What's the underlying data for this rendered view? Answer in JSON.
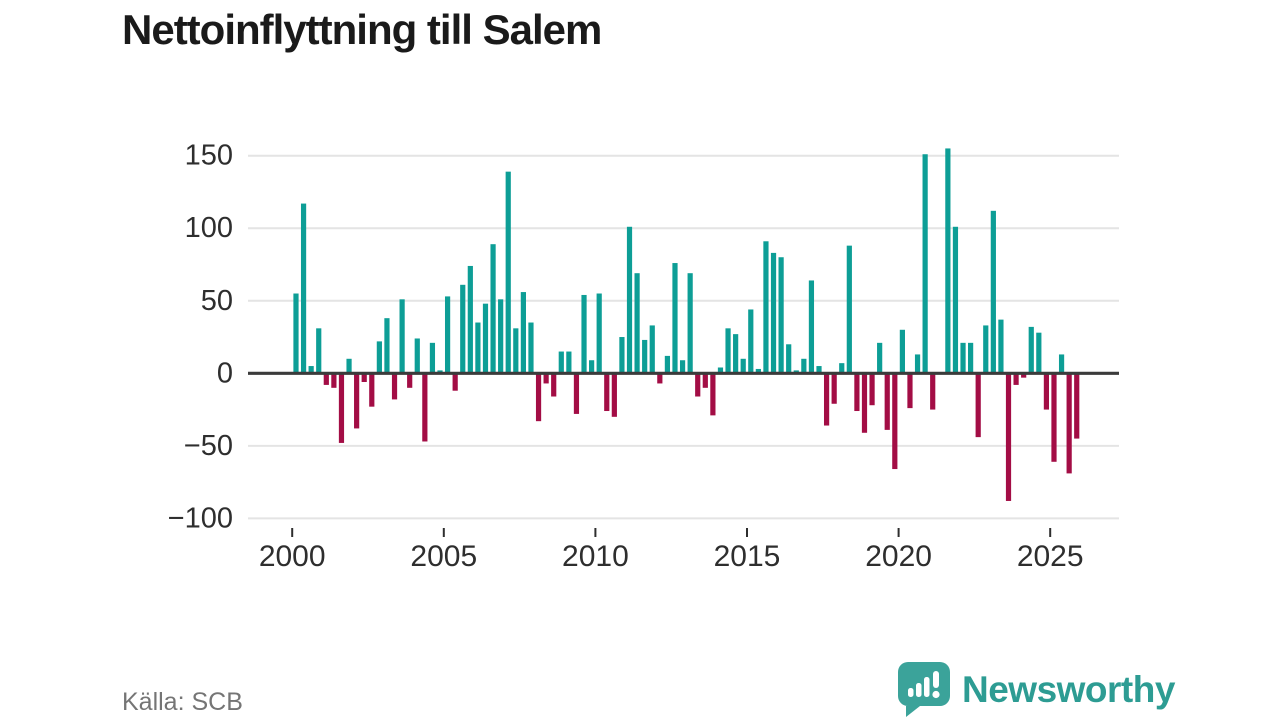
{
  "title": "Nettoinflyttning till Salem",
  "footer": {
    "source": "Källa: SCB"
  },
  "brand": {
    "name": "Newsworthy",
    "icon": "bar-chart-speech-bubble-icon"
  },
  "colors": {
    "positive_bar": "#0d9e96",
    "negative_bar": "#a30d45",
    "gridline": "#e4e4e4",
    "zero_axis": "#3b3b3b",
    "tick_label": "#2e2e2e",
    "source_text": "#757575",
    "brand_teal": "#2d9c93",
    "brand_icon_teal": "#3ba39a",
    "background": "#ffffff"
  },
  "chart_data": {
    "type": "bar",
    "title": "Nettoinflyttning till Salem",
    "xlabel": "",
    "ylabel": "",
    "frequency": "quarterly",
    "grid": "horizontal",
    "ylim": [
      -108,
      161
    ],
    "y_ticks": [
      150,
      100,
      50,
      0,
      -50,
      -100
    ],
    "y_tick_labels": [
      "150",
      "100",
      "50",
      "0",
      "−50",
      "−100"
    ],
    "x_ticks": [
      2000,
      2005,
      2010,
      2015,
      2020,
      2025
    ],
    "x_tick_labels": [
      "2000",
      "2005",
      "2010",
      "2015",
      "2020",
      "2025"
    ],
    "x": [
      "2000 Q1",
      "2000 Q2",
      "2000 Q3",
      "2000 Q4",
      "2001 Q1",
      "2001 Q2",
      "2001 Q3",
      "2001 Q4",
      "2002 Q1",
      "2002 Q2",
      "2002 Q3",
      "2002 Q4",
      "2003 Q1",
      "2003 Q2",
      "2003 Q3",
      "2003 Q4",
      "2004 Q1",
      "2004 Q2",
      "2004 Q3",
      "2004 Q4",
      "2005 Q1",
      "2005 Q2",
      "2005 Q3",
      "2005 Q4",
      "2006 Q1",
      "2006 Q2",
      "2006 Q3",
      "2006 Q4",
      "2007 Q1",
      "2007 Q2",
      "2007 Q3",
      "2007 Q4",
      "2008 Q1",
      "2008 Q2",
      "2008 Q3",
      "2008 Q4",
      "2009 Q1",
      "2009 Q2",
      "2009 Q3",
      "2009 Q4",
      "2010 Q1",
      "2010 Q2",
      "2010 Q3",
      "2010 Q4",
      "2011 Q1",
      "2011 Q2",
      "2011 Q3",
      "2011 Q4",
      "2012 Q1",
      "2012 Q2",
      "2012 Q3",
      "2012 Q4",
      "2013 Q1",
      "2013 Q2",
      "2013 Q3",
      "2013 Q4",
      "2014 Q1",
      "2014 Q2",
      "2014 Q3",
      "2014 Q4",
      "2015 Q1",
      "2015 Q2",
      "2015 Q3",
      "2015 Q4",
      "2016 Q1",
      "2016 Q2",
      "2016 Q3",
      "2016 Q4",
      "2017 Q1",
      "2017 Q2",
      "2017 Q3",
      "2017 Q4",
      "2018 Q1",
      "2018 Q2",
      "2018 Q3",
      "2018 Q4",
      "2019 Q1",
      "2019 Q2",
      "2019 Q3",
      "2019 Q4",
      "2020 Q1",
      "2020 Q2",
      "2020 Q3",
      "2020 Q4",
      "2021 Q1",
      "2021 Q2",
      "2021 Q3",
      "2021 Q4",
      "2022 Q1",
      "2022 Q2",
      "2022 Q3",
      "2022 Q4",
      "2023 Q1",
      "2023 Q2",
      "2023 Q3",
      "2023 Q4",
      "2024 Q1",
      "2024 Q2",
      "2024 Q3",
      "2024 Q4",
      "2025 Q1",
      "2025 Q2",
      "2025 Q3",
      "2025 Q4"
    ],
    "values": [
      55,
      117,
      5,
      31,
      -8,
      -10,
      -48,
      10,
      -38,
      -6,
      -23,
      22,
      38,
      -18,
      51,
      -10,
      24,
      -47,
      21,
      2,
      53,
      -12,
      61,
      74,
      35,
      48,
      89,
      51,
      139,
      31,
      56,
      35,
      -33,
      -7,
      -16,
      15,
      15,
      -28,
      54,
      9,
      55,
      -26,
      -30,
      25,
      101,
      69,
      23,
      33,
      -7,
      12,
      76,
      9,
      69,
      -16,
      -10,
      -29,
      4,
      31,
      27,
      10,
      44,
      3,
      91,
      83,
      80,
      20,
      2,
      10,
      64,
      5,
      -36,
      -21,
      7,
      88,
      -26,
      -41,
      -22,
      21,
      -39,
      -66,
      30,
      -24,
      13,
      151,
      -25,
      0,
      155,
      101,
      21,
      21,
      -44,
      33,
      112,
      37,
      -88,
      -8,
      -3,
      32,
      28,
      -25,
      -61,
      13,
      -69,
      -45
    ],
    "legend": null
  }
}
